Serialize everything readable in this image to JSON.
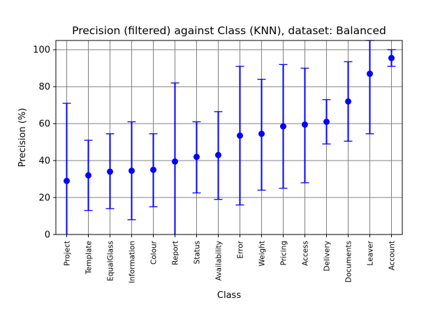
{
  "chart_data": {
    "type": "scatter",
    "title": "Precision (filtered) against Class (KNN), dataset: Balanced",
    "xlabel": "Class",
    "ylabel": "Precision (%)",
    "ylim": [
      0,
      105
    ],
    "yticks": [
      0,
      20,
      40,
      60,
      80,
      100
    ],
    "grid": true,
    "marker_color": "#0000ff",
    "grid_color": "#808080",
    "categories": [
      "Project",
      "Template",
      "EqualGlass",
      "Information",
      "Colour",
      "Report",
      "Status",
      "Availability",
      "Error",
      "Weight",
      "Pricing",
      "Access",
      "Delivery",
      "Documents",
      "Leaver",
      "Account"
    ],
    "values": [
      29,
      32,
      34,
      34.5,
      35,
      39.5,
      42,
      43,
      53.5,
      54.5,
      58.5,
      59.5,
      61,
      72,
      87,
      95.5
    ],
    "error_low": [
      0,
      13,
      14,
      8,
      15,
      0,
      22.5,
      19,
      16,
      24,
      25,
      28,
      49,
      50.5,
      54.5,
      91
    ],
    "error_high": [
      71,
      51,
      54.5,
      61,
      54.5,
      82,
      61,
      66.5,
      91,
      84,
      92,
      90,
      73,
      93.5,
      105,
      100
    ]
  }
}
